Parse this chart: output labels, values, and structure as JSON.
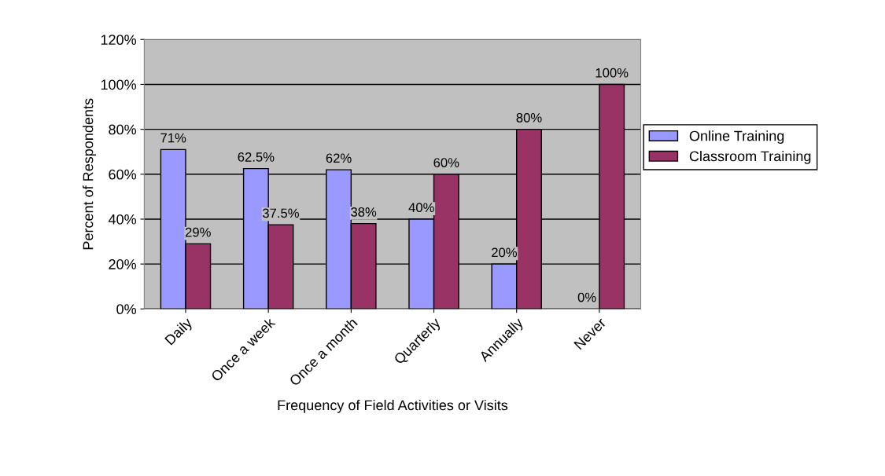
{
  "chart_data": {
    "type": "bar",
    "xlabel": "Frequency of Field Activities or Visits",
    "ylabel": "Percent of Respondents",
    "categories": [
      "Daily",
      "Once a week",
      "Once a month",
      "Quarterly",
      "Annually",
      "Never"
    ],
    "series": [
      {
        "name": "Online Training",
        "color": "#9999ff",
        "values": [
          71,
          62.5,
          62,
          40,
          20,
          0
        ],
        "value_labels": [
          "71%",
          "62.5%",
          "62%",
          "40%",
          "20%",
          "0%"
        ]
      },
      {
        "name": "Classroom Training",
        "color": "#993366",
        "values": [
          29,
          37.5,
          38,
          60,
          80,
          100
        ],
        "value_labels": [
          "29%",
          "37.5%",
          "38%",
          "60%",
          "80%",
          "100%"
        ]
      }
    ],
    "ylim": [
      0,
      120
    ],
    "yticks": [
      {
        "value": 0,
        "label": "0%"
      },
      {
        "value": 20,
        "label": "20%"
      },
      {
        "value": 40,
        "label": "40%"
      },
      {
        "value": 60,
        "label": "60%"
      },
      {
        "value": 80,
        "label": "80%"
      },
      {
        "value": 100,
        "label": "100%"
      },
      {
        "value": 120,
        "label": "120%"
      }
    ],
    "grid": "y",
    "legend": "right"
  }
}
